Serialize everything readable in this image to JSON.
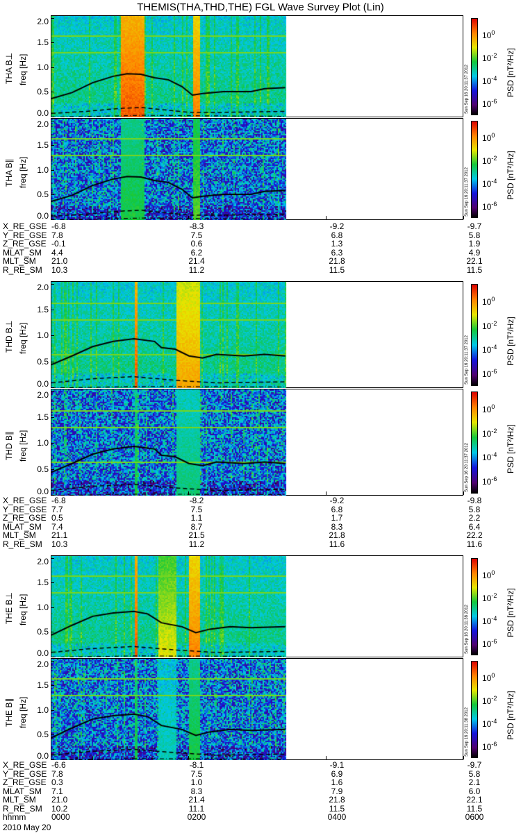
{
  "title": "THEMIS(THA,THD,THE) FGL Wave Survey Plot (Lin)",
  "colors": {
    "line": "#000000",
    "background": "#ffffff"
  },
  "chart_data": {
    "type": "heatmap",
    "xlabel": "hhmm",
    "x_unit": "hours since 2010-05-20 00:00",
    "xlim": [
      0,
      6
    ],
    "data_end_hour": 3.4,
    "ylim": [
      0,
      2.05
    ],
    "yticks": [
      "0.0",
      "0.5",
      "1.0",
      "1.5",
      "2.0"
    ],
    "ylabel": "freq [Hz]",
    "colorbar": {
      "label": "PSD [nT²/Hz]",
      "ticks": [
        "10^0",
        "10^-2",
        "10^-4",
        "10^-6"
      ],
      "range_log10": [
        -7,
        1.5
      ]
    },
    "panels": [
      {
        "label": "THA B⊥",
        "stamp": "Sun Sep 16 20:11:37 2012",
        "component": "perp",
        "bursts": [
          [
            1.0,
            1.35,
            0.9
          ],
          [
            2.05,
            2.15,
            0.85
          ]
        ],
        "solid": [
          [
            0,
            0.38
          ],
          [
            0.3,
            0.5
          ],
          [
            0.6,
            0.7
          ],
          [
            0.9,
            0.83
          ],
          [
            1.1,
            0.88
          ],
          [
            1.3,
            0.87
          ],
          [
            1.5,
            0.8
          ],
          [
            1.7,
            0.76
          ],
          [
            1.9,
            0.62
          ],
          [
            2.05,
            0.45
          ],
          [
            2.2,
            0.48
          ],
          [
            2.5,
            0.52
          ],
          [
            2.9,
            0.52
          ],
          [
            3.1,
            0.58
          ],
          [
            3.4,
            0.6
          ]
        ],
        "dashed": [
          [
            0,
            0.08
          ],
          [
            0.5,
            0.12
          ],
          [
            1.0,
            0.18
          ],
          [
            1.3,
            0.2
          ],
          [
            2.0,
            0.1
          ],
          [
            2.5,
            0.1
          ],
          [
            3.4,
            0.12
          ]
        ],
        "dashdot": [
          [
            0,
            0.0
          ],
          [
            1.3,
            0.04
          ],
          [
            3.4,
            0.02
          ]
        ]
      },
      {
        "label": "THA B∥",
        "stamp": "Sun Sep 16 20:11:37 2012",
        "component": "par",
        "bursts": [
          [
            1.0,
            1.35,
            0.55
          ],
          [
            2.05,
            2.15,
            0.6
          ]
        ],
        "solid": [
          [
            0,
            0.38
          ],
          [
            0.3,
            0.5
          ],
          [
            0.6,
            0.7
          ],
          [
            0.9,
            0.83
          ],
          [
            1.1,
            0.88
          ],
          [
            1.3,
            0.87
          ],
          [
            1.5,
            0.8
          ],
          [
            1.7,
            0.76
          ],
          [
            1.9,
            0.62
          ],
          [
            2.05,
            0.45
          ],
          [
            2.2,
            0.48
          ],
          [
            2.5,
            0.52
          ],
          [
            2.9,
            0.52
          ],
          [
            3.1,
            0.58
          ],
          [
            3.4,
            0.6
          ]
        ],
        "dashed": [
          [
            0,
            0.08
          ],
          [
            0.5,
            0.12
          ],
          [
            1.0,
            0.18
          ],
          [
            1.3,
            0.2
          ],
          [
            2.0,
            0.1
          ],
          [
            2.5,
            0.1
          ],
          [
            3.4,
            0.12
          ]
        ],
        "dashdot": [
          [
            0,
            0.0
          ],
          [
            1.3,
            0.04
          ],
          [
            3.4,
            0.02
          ]
        ]
      },
      {
        "label": "THD B⊥",
        "stamp": "Sun Sep 16 20:11:37 2012",
        "component": "perp",
        "bursts": [
          [
            1.2,
            1.25,
            0.9
          ],
          [
            1.8,
            2.15,
            0.8
          ]
        ],
        "solid": [
          [
            0,
            0.45
          ],
          [
            0.3,
            0.62
          ],
          [
            0.6,
            0.8
          ],
          [
            0.9,
            0.9
          ],
          [
            1.2,
            0.95
          ],
          [
            1.5,
            0.9
          ],
          [
            1.6,
            0.78
          ],
          [
            1.8,
            0.75
          ],
          [
            2.0,
            0.62
          ],
          [
            2.2,
            0.58
          ],
          [
            2.4,
            0.65
          ],
          [
            2.8,
            0.62
          ],
          [
            3.1,
            0.65
          ],
          [
            3.4,
            0.62
          ]
        ],
        "dashed": [
          [
            0,
            0.1
          ],
          [
            0.6,
            0.18
          ],
          [
            1.2,
            0.22
          ],
          [
            1.8,
            0.15
          ],
          [
            2.4,
            0.1
          ],
          [
            3.4,
            0.12
          ]
        ],
        "dashdot": [
          [
            0,
            0.0
          ],
          [
            1.2,
            0.03
          ],
          [
            3.4,
            0.02
          ]
        ]
      },
      {
        "label": "THD B∥",
        "stamp": "Sun Sep 16 20:11:37 2012",
        "component": "par",
        "bursts": [
          [
            1.2,
            1.25,
            0.55
          ],
          [
            1.8,
            2.15,
            0.5
          ]
        ],
        "solid": [
          [
            0,
            0.45
          ],
          [
            0.3,
            0.62
          ],
          [
            0.6,
            0.8
          ],
          [
            0.9,
            0.9
          ],
          [
            1.2,
            0.95
          ],
          [
            1.5,
            0.9
          ],
          [
            1.6,
            0.78
          ],
          [
            1.8,
            0.75
          ],
          [
            2.0,
            0.62
          ],
          [
            2.2,
            0.58
          ],
          [
            2.4,
            0.65
          ],
          [
            2.8,
            0.62
          ],
          [
            3.1,
            0.65
          ],
          [
            3.4,
            0.62
          ]
        ],
        "dashed": [
          [
            0,
            0.1
          ],
          [
            0.6,
            0.18
          ],
          [
            1.2,
            0.22
          ],
          [
            1.8,
            0.15
          ],
          [
            2.4,
            0.1
          ],
          [
            3.4,
            0.12
          ]
        ],
        "dashdot": [
          [
            0,
            0.0
          ],
          [
            1.2,
            0.03
          ],
          [
            3.4,
            0.02
          ]
        ]
      },
      {
        "label": "THE B⊥",
        "stamp": "Sun Sep 16 20:11:38 2012",
        "component": "perp",
        "bursts": [
          [
            1.2,
            1.25,
            0.9
          ],
          [
            1.55,
            1.8,
            0.7
          ],
          [
            2.0,
            2.15,
            0.85
          ]
        ],
        "solid": [
          [
            0,
            0.45
          ],
          [
            0.3,
            0.65
          ],
          [
            0.6,
            0.83
          ],
          [
            0.9,
            0.9
          ],
          [
            1.2,
            0.93
          ],
          [
            1.4,
            0.88
          ],
          [
            1.6,
            0.7
          ],
          [
            1.9,
            0.62
          ],
          [
            2.1,
            0.5
          ],
          [
            2.3,
            0.57
          ],
          [
            2.6,
            0.62
          ],
          [
            2.9,
            0.6
          ],
          [
            3.4,
            0.62
          ]
        ],
        "dashed": [
          [
            0,
            0.1
          ],
          [
            0.6,
            0.18
          ],
          [
            1.2,
            0.22
          ],
          [
            1.8,
            0.15
          ],
          [
            2.4,
            0.1
          ],
          [
            3.4,
            0.12
          ]
        ],
        "dashdot": [
          [
            0,
            0.0
          ],
          [
            1.2,
            0.03
          ],
          [
            3.4,
            0.02
          ]
        ]
      },
      {
        "label": "THE B∥",
        "stamp": "Sun Sep 16 20:11:38 2012",
        "component": "par",
        "bursts": [
          [
            1.2,
            1.25,
            0.55
          ],
          [
            1.55,
            1.8,
            0.45
          ],
          [
            2.0,
            2.15,
            0.55
          ]
        ],
        "solid": [
          [
            0,
            0.45
          ],
          [
            0.3,
            0.65
          ],
          [
            0.6,
            0.83
          ],
          [
            0.9,
            0.9
          ],
          [
            1.2,
            0.93
          ],
          [
            1.4,
            0.88
          ],
          [
            1.6,
            0.7
          ],
          [
            1.9,
            0.62
          ],
          [
            2.1,
            0.5
          ],
          [
            2.3,
            0.57
          ],
          [
            2.6,
            0.62
          ],
          [
            2.9,
            0.6
          ],
          [
            3.4,
            0.62
          ]
        ],
        "dashed": [
          [
            0,
            0.1
          ],
          [
            0.6,
            0.18
          ],
          [
            1.2,
            0.22
          ],
          [
            1.8,
            0.15
          ],
          [
            2.4,
            0.1
          ],
          [
            3.4,
            0.12
          ]
        ],
        "dashdot": [
          [
            0,
            0.0
          ],
          [
            1.2,
            0.03
          ],
          [
            3.4,
            0.02
          ]
        ]
      }
    ]
  },
  "ephemeris": [
    {
      "rows": [
        {
          "label": "X_RE_GSE",
          "values": [
            "-6.8",
            "-8.3",
            "-9.2",
            "-9.7"
          ]
        },
        {
          "label": "Y_RE_GSE",
          "values": [
            "7.8",
            "7.5",
            "6.8",
            "5.8"
          ]
        },
        {
          "label": "Z_RE_GSE",
          "values": [
            "-0.1",
            "0.6",
            "1.3",
            "1.9"
          ]
        },
        {
          "label": "MLAT_SM",
          "values": [
            "4.4",
            "6.2",
            "6.3",
            "4.9"
          ]
        },
        {
          "label": "MLT_SM",
          "values": [
            "21.0",
            "21.4",
            "21.8",
            "22.1"
          ]
        },
        {
          "label": "R_RE_SM",
          "values": [
            "10.3",
            "11.2",
            "11.5",
            "11.5"
          ]
        }
      ]
    },
    {
      "rows": [
        {
          "label": "X_RE_GSE",
          "values": [
            "-6.8",
            "-8.2",
            "-9.2",
            "-9.8"
          ]
        },
        {
          "label": "Y_RE_GSE",
          "values": [
            "7.7",
            "7.5",
            "6.8",
            "5.8"
          ]
        },
        {
          "label": "Z_RE_GSE",
          "values": [
            "0.5",
            "1.1",
            "1.7",
            "2.2"
          ]
        },
        {
          "label": "MLAT_SM",
          "values": [
            "7.4",
            "8.7",
            "8.3",
            "6.4"
          ]
        },
        {
          "label": "MLT_SM",
          "values": [
            "21.1",
            "21.5",
            "21.8",
            "22.2"
          ]
        },
        {
          "label": "R_RE_SM",
          "values": [
            "10.3",
            "11.2",
            "11.6",
            "11.6"
          ]
        }
      ]
    },
    {
      "rows": [
        {
          "label": "X_RE_GSE",
          "values": [
            "-6.6",
            "-8.1",
            "-9.1",
            "-9.7"
          ]
        },
        {
          "label": "Y_RE_GSE",
          "values": [
            "7.8",
            "7.5",
            "6.9",
            "5.8"
          ]
        },
        {
          "label": "Z_RE_GSE",
          "values": [
            "0.3",
            "1.0",
            "1.6",
            "2.1"
          ]
        },
        {
          "label": "MLAT_SM",
          "values": [
            "7.1",
            "8.3",
            "7.9",
            "6.0"
          ]
        },
        {
          "label": "MLT_SM",
          "values": [
            "21.0",
            "21.4",
            "21.8",
            "22.1"
          ]
        },
        {
          "label": "R_RE_SM",
          "values": [
            "10.2",
            "11.1",
            "11.5",
            "11.5"
          ]
        },
        {
          "label": "hhmm",
          "values": [
            "0000",
            "0200",
            "0400",
            "0600"
          ]
        }
      ]
    }
  ],
  "date": "2010 May 20"
}
